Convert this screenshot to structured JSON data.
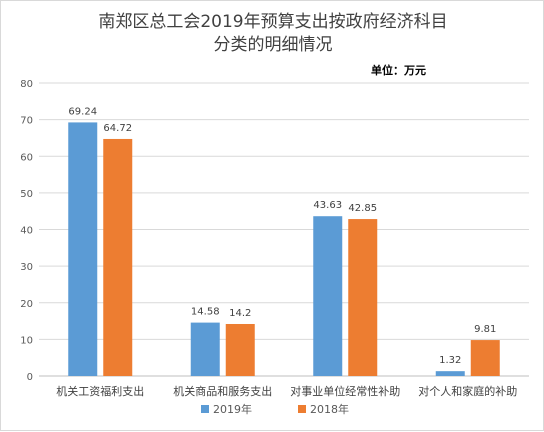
{
  "chart_data": {
    "type": "bar",
    "title_lines": [
      "南郑区总工会2019年预算支出按政府经济科目",
      "分类的明细情况"
    ],
    "unit_note": "单位：万元",
    "categories": [
      "机关工资福利支出",
      "机关商品和服务支出",
      "对事业单位经常性补助",
      "对个人和家庭的补助"
    ],
    "series": [
      {
        "name": "2019年",
        "color": "#5b9bd5",
        "values": [
          69.24,
          14.58,
          43.63,
          1.32
        ],
        "labels": [
          "69.24",
          "14.58",
          "43.63",
          "1.32"
        ]
      },
      {
        "name": "2018年",
        "color": "#ed7d31",
        "values": [
          64.72,
          14.2,
          42.85,
          9.81
        ],
        "labels": [
          "64.72",
          "14.2",
          "42.85",
          "9.81"
        ]
      }
    ],
    "ylim": [
      0,
      80
    ],
    "yticks": [
      "0",
      "10",
      "20",
      "30",
      "40",
      "50",
      "60",
      "70",
      "80"
    ],
    "grid": true,
    "legend_position": "bottom"
  }
}
